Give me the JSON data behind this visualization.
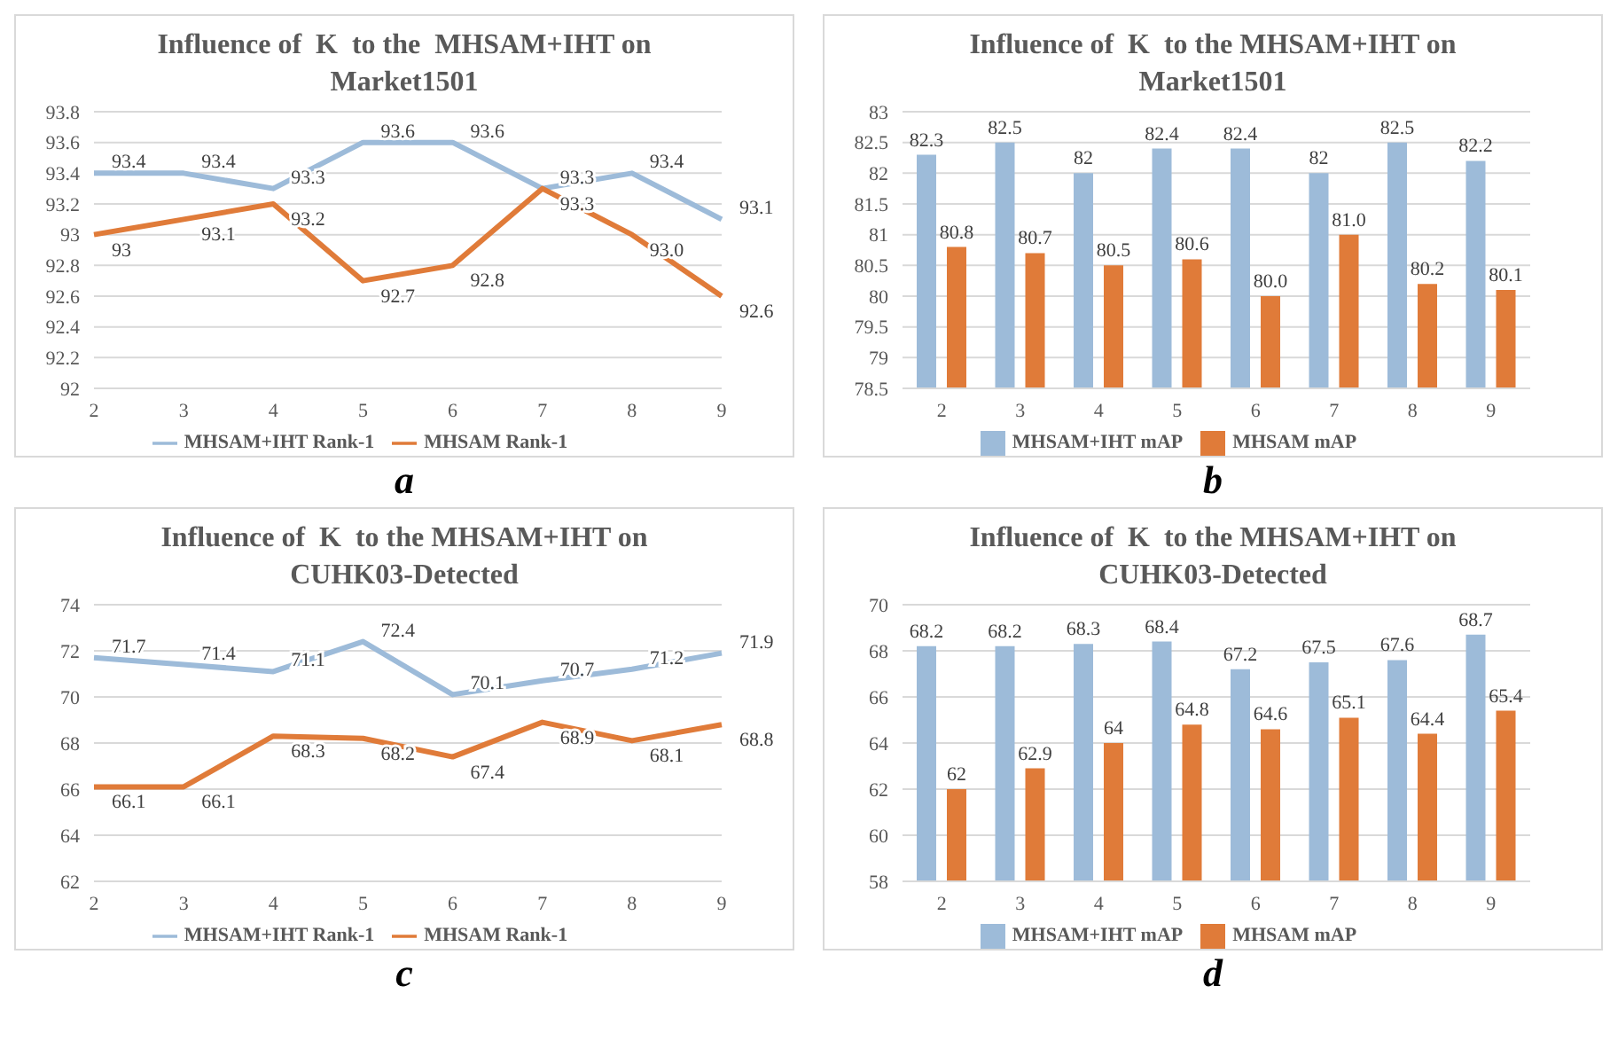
{
  "chart_data": [
    {
      "type": "line",
      "title": "Influence of  K  to the  MHSAM+IHT on Market1501",
      "categories": [
        "2",
        "3",
        "4",
        "5",
        "6",
        "7",
        "8",
        "9"
      ],
      "ylim": [
        92,
        93.8
      ],
      "yticks": [
        92,
        92.2,
        92.4,
        92.6,
        92.8,
        93,
        93.2,
        93.4,
        93.6,
        93.8
      ],
      "grid": "y",
      "legend": "bottom",
      "marker": "none",
      "annotations": [
        "a"
      ],
      "series": [
        {
          "name": "MHSAM+IHT Rank-1",
          "color": "#9dbbd9",
          "values": [
            93.4,
            93.4,
            93.3,
            93.6,
            93.6,
            93.3,
            93.4,
            93.1
          ],
          "value_labels": [
            "93.4",
            "93.4",
            "93.3",
            "93.6",
            "93.6",
            "93.3",
            "93.4",
            "93.1"
          ]
        },
        {
          "name": "MHSAM  Rank-1",
          "color": "#e07b39",
          "values": [
            93,
            93.1,
            93.2,
            92.7,
            92.8,
            93.3,
            93.0,
            92.6
          ],
          "value_labels": [
            "93",
            "93.1",
            "93.2",
            "92.7",
            "92.8",
            "93.3",
            "93.0",
            "92.6"
          ]
        }
      ]
    },
    {
      "type": "bar",
      "title": "Influence of  K  to the MHSAM+IHT on Market1501",
      "categories": [
        "2",
        "3",
        "4",
        "5",
        "6",
        "7",
        "8",
        "9"
      ],
      "ylim": [
        78.5,
        83
      ],
      "yticks": [
        78.5,
        79,
        79.5,
        80,
        80.5,
        81,
        81.5,
        82,
        82.5,
        83
      ],
      "grid": "y",
      "legend": "bottom",
      "annotations": [
        "b"
      ],
      "series": [
        {
          "name": "MHSAM+IHT mAP",
          "color": "#9dbbd9",
          "values": [
            82.3,
            82.5,
            82,
            82.4,
            82.4,
            82,
            82.5,
            82.2
          ],
          "value_labels": [
            "82.3",
            "82.5",
            "82",
            "82.4",
            "82.4",
            "82",
            "82.5",
            "82.2"
          ]
        },
        {
          "name": "MHSAM mAP",
          "color": "#e07b39",
          "values": [
            80.8,
            80.7,
            80.5,
            80.6,
            80.0,
            81.0,
            80.2,
            80.1
          ],
          "value_labels": [
            "80.8",
            "80.7",
            "80.5",
            "80.6",
            "80.0",
            "81.0",
            "80.2",
            "80.1"
          ]
        }
      ]
    },
    {
      "type": "line",
      "title": "Influence of  K  to the MHSAM+IHT on CUHK03-Detected",
      "categories": [
        "2",
        "3",
        "4",
        "5",
        "6",
        "7",
        "8",
        "9"
      ],
      "ylim": [
        62,
        74
      ],
      "yticks": [
        62,
        64,
        66,
        68,
        70,
        72,
        74
      ],
      "grid": "y",
      "legend": "bottom",
      "marker": "none",
      "annotations": [
        "c"
      ],
      "series": [
        {
          "name": "MHSAM+IHT Rank-1",
          "color": "#9dbbd9",
          "values": [
            71.7,
            71.4,
            71.1,
            72.4,
            70.1,
            70.7,
            71.2,
            71.9
          ],
          "value_labels": [
            "71.7",
            "71.4",
            "71.1",
            "72.4",
            "70.1",
            "70.7",
            "71.2",
            "71.9"
          ]
        },
        {
          "name": "MHSAM Rank-1",
          "color": "#e07b39",
          "values": [
            66.1,
            66.1,
            68.3,
            68.2,
            67.4,
            68.9,
            68.1,
            68.8
          ],
          "value_labels": [
            "66.1",
            "66.1",
            "68.3",
            "68.2",
            "67.4",
            "68.9",
            "68.1",
            "68.8"
          ]
        }
      ]
    },
    {
      "type": "bar",
      "title": "Influence of  K  to the MHSAM+IHT on CUHK03-Detected",
      "categories": [
        "2",
        "3",
        "4",
        "5",
        "6",
        "7",
        "8",
        "9"
      ],
      "ylim": [
        58,
        70
      ],
      "yticks": [
        58,
        60,
        62,
        64,
        66,
        68,
        70
      ],
      "grid": "y",
      "legend": "bottom",
      "annotations": [
        "d"
      ],
      "series": [
        {
          "name": "MHSAM+IHT mAP",
          "color": "#9dbbd9",
          "values": [
            68.2,
            68.2,
            68.3,
            68.4,
            67.2,
            67.5,
            67.6,
            68.7
          ],
          "value_labels": [
            "68.2",
            "68.2",
            "68.3",
            "68.4",
            "67.2",
            "67.5",
            "67.6",
            "68.7"
          ]
        },
        {
          "name": "MHSAM mAP",
          "color": "#e07b39",
          "values": [
            62,
            62.9,
            64,
            64.8,
            64.6,
            65.1,
            64.4,
            65.4
          ],
          "value_labels": [
            "62",
            "62.9",
            "64",
            "64.8",
            "64.6",
            "65.1",
            "64.4",
            "65.4"
          ]
        }
      ]
    }
  ]
}
